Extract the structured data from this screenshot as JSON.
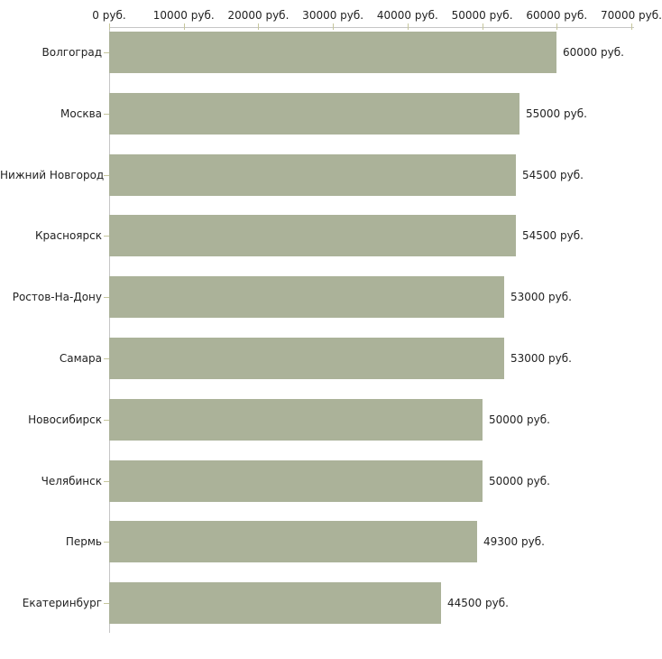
{
  "chart_data": {
    "type": "bar",
    "orientation": "horizontal",
    "title": "",
    "xlabel": "",
    "ylabel": "",
    "unit": "руб.",
    "categories": [
      "Волгоград",
      "Москва",
      "Нижний Новгород",
      "Красноярск",
      "Ростов-На-Дону",
      "Самара",
      "Новосибирск",
      "Челябинск",
      "Пермь",
      "Екатеринбург"
    ],
    "values": [
      60000,
      55000,
      54500,
      54500,
      53000,
      53000,
      50000,
      50000,
      49300,
      44500
    ],
    "value_labels": [
      "60000 руб.",
      "55000 руб.",
      "54500 руб.",
      "54500 руб.",
      "53000 руб.",
      "53000 руб.",
      "50000 руб.",
      "50000 руб.",
      "49300 руб.",
      "44500 руб."
    ],
    "x_tick_labels": [
      "0 руб.",
      "10000 руб.",
      "20000 руб.",
      "30000 руб.",
      "40000 руб.",
      "50000 руб.",
      "60000 руб.",
      "70000 руб."
    ],
    "x_tick_values": [
      0,
      10000,
      20000,
      30000,
      40000,
      50000,
      60000,
      70000
    ],
    "xlim": [
      0,
      70000
    ],
    "grid": false,
    "legend": false,
    "colors": {
      "bar": "#abb299",
      "axis": "#c6c6c6",
      "tick": "#c6c69c",
      "text": "#222222",
      "background": "#ffffff"
    }
  }
}
